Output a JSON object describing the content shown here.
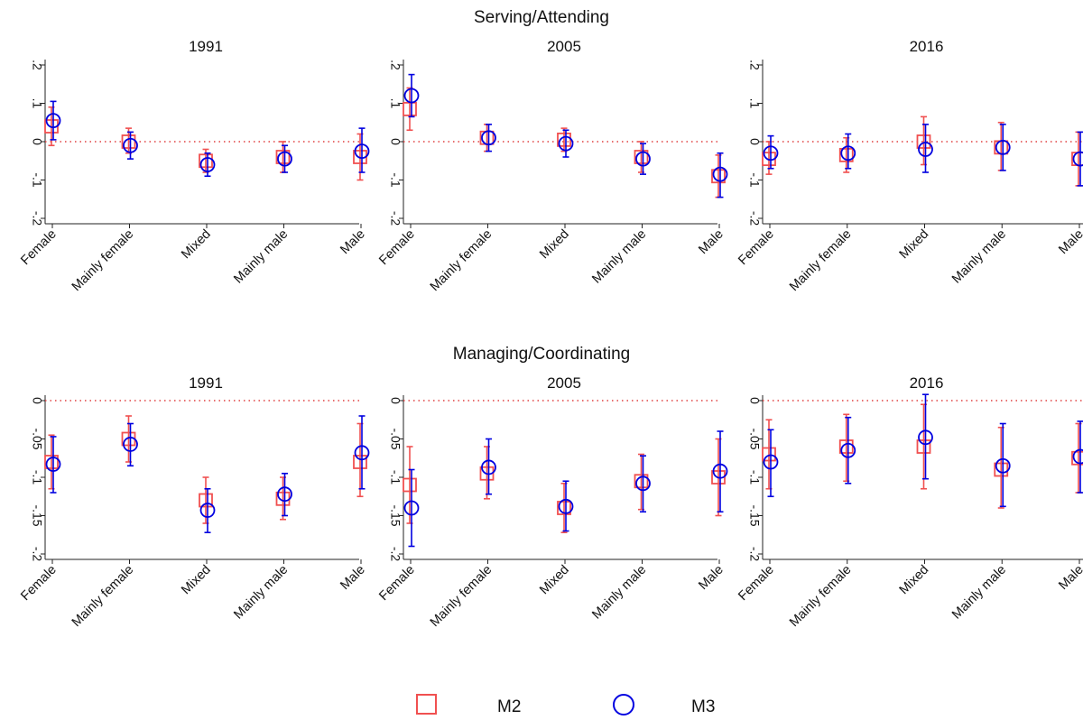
{
  "sections": [
    {
      "title": "Serving/Attending"
    },
    {
      "title": "Managing/Coordinating"
    }
  ],
  "legend": [
    {
      "label": "M2",
      "marker": "square",
      "color": "#f05050"
    },
    {
      "label": "M3",
      "marker": "circle",
      "color": "#0000e0"
    }
  ],
  "colors": {
    "m2": "#f05050",
    "m3": "#0000e0",
    "zero_line": "#e04040"
  },
  "chart_data": [
    {
      "type": "scatter",
      "section": "Serving/Attending",
      "title": "1991",
      "categories": [
        "Female",
        "Mainly female",
        "Mixed",
        "Mainly male",
        "Male"
      ],
      "ylim": [
        -0.2,
        0.2
      ],
      "yticks": [
        0.2,
        0.1,
        0,
        -0.1,
        -0.2
      ],
      "ytick_labels": [
        ".2",
        ".1",
        "0",
        "-.1",
        "-.2"
      ],
      "reference_line": 0,
      "series": [
        {
          "name": "M2",
          "values": [
            0.04,
            0.0,
            -0.05,
            -0.04,
            -0.04
          ],
          "ci_low": [
            -0.01,
            -0.03,
            -0.08,
            -0.08,
            -0.1
          ],
          "ci_high": [
            0.09,
            0.035,
            -0.02,
            0.0,
            0.02
          ]
        },
        {
          "name": "M3",
          "values": [
            0.055,
            -0.01,
            -0.06,
            -0.045,
            -0.025
          ],
          "ci_low": [
            0.005,
            -0.045,
            -0.09,
            -0.08,
            -0.08
          ],
          "ci_high": [
            0.105,
            0.025,
            -0.03,
            -0.01,
            0.035
          ]
        }
      ]
    },
    {
      "type": "scatter",
      "section": "Serving/Attending",
      "title": "2005",
      "categories": [
        "Female",
        "Mainly female",
        "Mixed",
        "Mainly male",
        "Male"
      ],
      "ylim": [
        -0.2,
        0.2
      ],
      "yticks": [
        0.2,
        0.1,
        0,
        -0.1,
        -0.2
      ],
      "ytick_labels": [
        ".2",
        ".1",
        "0",
        "-.1",
        "-.2"
      ],
      "reference_line": 0,
      "series": [
        {
          "name": "M2",
          "values": [
            0.085,
            0.01,
            0.005,
            -0.04,
            -0.09
          ],
          "ci_low": [
            0.03,
            -0.025,
            -0.025,
            -0.08,
            -0.145
          ],
          "ci_high": [
            0.14,
            0.045,
            0.035,
            0.0,
            -0.035
          ]
        },
        {
          "name": "M3",
          "values": [
            0.12,
            0.01,
            -0.005,
            -0.045,
            -0.085
          ],
          "ci_low": [
            0.065,
            -0.025,
            -0.04,
            -0.085,
            -0.145
          ],
          "ci_high": [
            0.175,
            0.045,
            0.03,
            -0.005,
            -0.03
          ]
        }
      ]
    },
    {
      "type": "scatter",
      "section": "Serving/Attending",
      "title": "2016",
      "categories": [
        "Female",
        "Mainly female",
        "Mixed",
        "Mainly male",
        "Male"
      ],
      "ylim": [
        -0.2,
        0.2
      ],
      "yticks": [
        0.2,
        0.1,
        0,
        -0.1,
        -0.2
      ],
      "ytick_labels": [
        ".2",
        ".1",
        "0",
        "-.1",
        "-.2"
      ],
      "reference_line": 0,
      "series": [
        {
          "name": "M2",
          "values": [
            -0.045,
            -0.035,
            0.0,
            -0.015,
            -0.045
          ],
          "ci_low": [
            -0.085,
            -0.08,
            -0.06,
            -0.075,
            -0.115
          ],
          "ci_high": [
            0.0,
            0.01,
            0.065,
            0.05,
            0.025
          ]
        },
        {
          "name": "M3",
          "values": [
            -0.03,
            -0.03,
            -0.02,
            -0.015,
            -0.045
          ],
          "ci_low": [
            -0.07,
            -0.07,
            -0.08,
            -0.075,
            -0.115
          ],
          "ci_high": [
            0.015,
            0.02,
            0.045,
            0.045,
            0.025
          ]
        }
      ]
    },
    {
      "type": "scatter",
      "section": "Managing/Coordinating",
      "title": "1991",
      "categories": [
        "Female",
        "Mainly female",
        "Mixed",
        "Mainly male",
        "Male"
      ],
      "ylim": [
        -0.2,
        0
      ],
      "yticks": [
        0,
        -0.05,
        -0.1,
        -0.15,
        -0.2
      ],
      "ytick_labels": [
        "0",
        "-.05",
        "-.1",
        "-.15",
        "-.2"
      ],
      "reference_line": 0,
      "series": [
        {
          "name": "M2",
          "values": [
            -0.08,
            -0.05,
            -0.13,
            -0.128,
            -0.08
          ],
          "ci_low": [
            -0.115,
            -0.08,
            -0.16,
            -0.155,
            -0.125
          ],
          "ci_high": [
            -0.045,
            -0.02,
            -0.1,
            -0.1,
            -0.03
          ]
        },
        {
          "name": "M3",
          "values": [
            -0.083,
            -0.057,
            -0.143,
            -0.122,
            -0.068
          ],
          "ci_low": [
            -0.12,
            -0.085,
            -0.172,
            -0.15,
            -0.115
          ],
          "ci_high": [
            -0.047,
            -0.03,
            -0.115,
            -0.095,
            -0.02
          ]
        }
      ]
    },
    {
      "type": "scatter",
      "section": "Managing/Coordinating",
      "title": "2005",
      "categories": [
        "Female",
        "Mainly female",
        "Mixed",
        "Mainly male",
        "Male"
      ],
      "ylim": [
        -0.2,
        0
      ],
      "yticks": [
        0,
        -0.05,
        -0.1,
        -0.15,
        -0.2
      ],
      "ytick_labels": [
        "0",
        "-.05",
        "-.1",
        "-.15",
        "-.2"
      ],
      "reference_line": 0,
      "series": [
        {
          "name": "M2",
          "values": [
            -0.11,
            -0.095,
            -0.14,
            -0.105,
            -0.1
          ],
          "ci_low": [
            -0.16,
            -0.128,
            -0.172,
            -0.142,
            -0.15
          ],
          "ci_high": [
            -0.06,
            -0.06,
            -0.108,
            -0.07,
            -0.05
          ]
        },
        {
          "name": "M3",
          "values": [
            -0.14,
            -0.087,
            -0.138,
            -0.108,
            -0.092
          ],
          "ci_low": [
            -0.19,
            -0.122,
            -0.17,
            -0.145,
            -0.145
          ],
          "ci_high": [
            -0.09,
            -0.05,
            -0.105,
            -0.072,
            -0.04
          ]
        }
      ]
    },
    {
      "type": "scatter",
      "section": "Managing/Coordinating",
      "title": "2016",
      "categories": [
        "Female",
        "Mainly female",
        "Mixed",
        "Mainly male",
        "Male"
      ],
      "ylim": [
        -0.2,
        0
      ],
      "yticks": [
        0,
        -0.05,
        -0.1,
        -0.15,
        -0.2
      ],
      "ytick_labels": [
        "0",
        "-.05",
        "-.1",
        "-.15",
        "-.2"
      ],
      "reference_line": 0,
      "series": [
        {
          "name": "M2",
          "values": [
            -0.07,
            -0.06,
            -0.06,
            -0.09,
            -0.075
          ],
          "ci_low": [
            -0.115,
            -0.105,
            -0.115,
            -0.14,
            -0.12
          ],
          "ci_high": [
            -0.025,
            -0.018,
            -0.005,
            -0.035,
            -0.03
          ]
        },
        {
          "name": "M3",
          "values": [
            -0.08,
            -0.065,
            -0.048,
            -0.085,
            -0.073
          ],
          "ci_low": [
            -0.125,
            -0.108,
            -0.102,
            -0.138,
            -0.12
          ],
          "ci_high": [
            -0.038,
            -0.022,
            0.008,
            -0.03,
            -0.027
          ]
        }
      ]
    }
  ]
}
